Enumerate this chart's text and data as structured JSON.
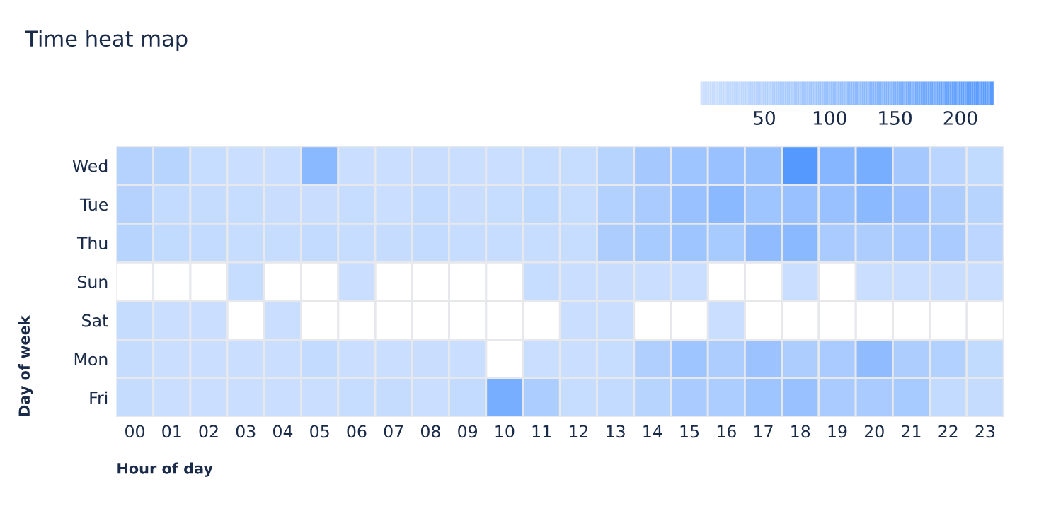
{
  "chart_data": {
    "type": "heatmap",
    "title": "Time heat map",
    "xlabel": "Hour of day",
    "ylabel": "Day of week",
    "categories": [
      "00",
      "01",
      "02",
      "03",
      "04",
      "05",
      "06",
      "07",
      "08",
      "09",
      "10",
      "11",
      "12",
      "13",
      "14",
      "15",
      "16",
      "17",
      "18",
      "19",
      "20",
      "21",
      "22",
      "23"
    ],
    "y_categories": [
      "Wed",
      "Tue",
      "Thu",
      "Sun",
      "Sat",
      "Mon",
      "Fri"
    ],
    "cells": [
      [
        45,
        40,
        10,
        5,
        5,
        125,
        5,
        5,
        8,
        5,
        5,
        12,
        12,
        40,
        76,
        88,
        98,
        102,
        226,
        133,
        160,
        76,
        35,
        22
      ],
      [
        45,
        18,
        14,
        10,
        8,
        8,
        10,
        5,
        18,
        8,
        10,
        24,
        10,
        48,
        68,
        98,
        125,
        88,
        98,
        98,
        125,
        95,
        60,
        40
      ],
      [
        40,
        22,
        18,
        10,
        10,
        18,
        10,
        14,
        18,
        10,
        10,
        10,
        10,
        60,
        72,
        88,
        72,
        115,
        125,
        68,
        60,
        68,
        68,
        32
      ],
      [
        null,
        null,
        null,
        10,
        null,
        null,
        5,
        null,
        null,
        null,
        null,
        10,
        5,
        8,
        5,
        5,
        null,
        null,
        5,
        null,
        5,
        5,
        8,
        6
      ],
      [
        14,
        5,
        5,
        null,
        5,
        null,
        null,
        null,
        null,
        null,
        null,
        null,
        5,
        5,
        null,
        null,
        5,
        null,
        null,
        null,
        null,
        null,
        null,
        null
      ],
      [
        14,
        5,
        5,
        5,
        5,
        18,
        5,
        5,
        8,
        5,
        null,
        5,
        5,
        10,
        55,
        88,
        60,
        92,
        60,
        68,
        115,
        60,
        50,
        22
      ],
      [
        14,
        5,
        5,
        5,
        5,
        5,
        10,
        14,
        5,
        18,
        160,
        63,
        10,
        18,
        40,
        68,
        63,
        88,
        98,
        68,
        68,
        72,
        18,
        14
      ]
    ],
    "clim": [
      1,
      226
    ],
    "cticks": [
      50,
      100,
      150,
      200
    ]
  }
}
